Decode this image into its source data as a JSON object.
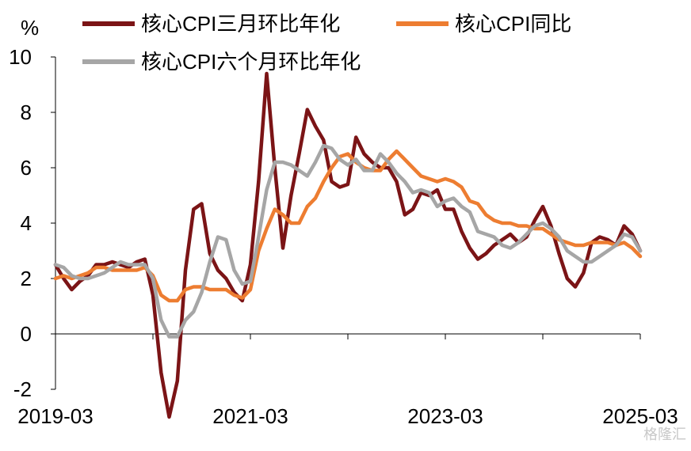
{
  "chart_data": {
    "type": "line",
    "unit_label": "%",
    "ylim": [
      -2,
      10
    ],
    "y_ticks": [
      -2,
      0,
      2,
      4,
      6,
      8,
      10
    ],
    "x_start": "2019-03",
    "x_end": "2025-03",
    "x_tick_labels": [
      "2019-03",
      "2021-03",
      "2023-03",
      "2025-03"
    ],
    "x_minor_ticks": [
      "2020-03",
      "2021-03",
      "2022-03",
      "2023-03",
      "2024-03",
      "2025-03"
    ],
    "grid": false,
    "legend_placement": "top",
    "series": [
      {
        "name": "核心CPI三月环比年化",
        "color": "#7b1416",
        "x": [
          "2019-03",
          "2019-04",
          "2019-05",
          "2019-06",
          "2019-07",
          "2019-08",
          "2019-09",
          "2019-10",
          "2019-11",
          "2019-12",
          "2020-01",
          "2020-02",
          "2020-03",
          "2020-04",
          "2020-05",
          "2020-06",
          "2020-07",
          "2020-08",
          "2020-09",
          "2020-10",
          "2020-11",
          "2020-12",
          "2021-01",
          "2021-02",
          "2021-03",
          "2021-04",
          "2021-05",
          "2021-06",
          "2021-07",
          "2021-08",
          "2021-09",
          "2021-10",
          "2021-11",
          "2021-12",
          "2022-01",
          "2022-02",
          "2022-03",
          "2022-04",
          "2022-05",
          "2022-06",
          "2022-07",
          "2022-08",
          "2022-09",
          "2022-10",
          "2022-11",
          "2022-12",
          "2023-01",
          "2023-02",
          "2023-03",
          "2023-04",
          "2023-05",
          "2023-06",
          "2023-07",
          "2023-08",
          "2023-09",
          "2023-10",
          "2023-11",
          "2023-12",
          "2024-01",
          "2024-02",
          "2024-03",
          "2024-04",
          "2024-05",
          "2024-06",
          "2024-07",
          "2024-08",
          "2024-09",
          "2024-10",
          "2024-11",
          "2024-12",
          "2025-01",
          "2025-02",
          "2025-03"
        ],
        "values": [
          2.5,
          2.0,
          1.6,
          1.9,
          2.1,
          2.5,
          2.5,
          2.6,
          2.5,
          2.4,
          2.6,
          2.7,
          1.4,
          -1.4,
          -3.0,
          -1.7,
          2.3,
          4.5,
          4.7,
          2.9,
          2.3,
          2.0,
          1.5,
          1.2,
          2.5,
          5.5,
          9.4,
          6.0,
          3.1,
          5.0,
          6.5,
          8.1,
          7.5,
          7.0,
          5.5,
          5.3,
          5.4,
          7.1,
          6.5,
          6.2,
          6.0,
          6.0,
          5.5,
          4.3,
          4.5,
          5.1,
          5.0,
          5.2,
          4.5,
          4.5,
          3.7,
          3.1,
          2.7,
          2.9,
          3.2,
          3.4,
          3.6,
          3.3,
          3.5,
          4.1,
          4.6,
          3.9,
          2.9,
          2.0,
          1.7,
          2.2,
          3.3,
          3.5,
          3.4,
          3.2,
          3.9,
          3.6,
          3.0
        ]
      },
      {
        "name": "核心CPI同比",
        "color": "#ed7d31",
        "x": [
          "2019-03",
          "2019-04",
          "2019-05",
          "2019-06",
          "2019-07",
          "2019-08",
          "2019-09",
          "2019-10",
          "2019-11",
          "2019-12",
          "2020-01",
          "2020-02",
          "2020-03",
          "2020-04",
          "2020-05",
          "2020-06",
          "2020-07",
          "2020-08",
          "2020-09",
          "2020-10",
          "2020-11",
          "2020-12",
          "2021-01",
          "2021-02",
          "2021-03",
          "2021-04",
          "2021-05",
          "2021-06",
          "2021-07",
          "2021-08",
          "2021-09",
          "2021-10",
          "2021-11",
          "2021-12",
          "2022-01",
          "2022-02",
          "2022-03",
          "2022-04",
          "2022-05",
          "2022-06",
          "2022-07",
          "2022-08",
          "2022-09",
          "2022-10",
          "2022-11",
          "2022-12",
          "2023-01",
          "2023-02",
          "2023-03",
          "2023-04",
          "2023-05",
          "2023-06",
          "2023-07",
          "2023-08",
          "2023-09",
          "2023-10",
          "2023-11",
          "2023-12",
          "2024-01",
          "2024-02",
          "2024-03",
          "2024-04",
          "2024-05",
          "2024-06",
          "2024-07",
          "2024-08",
          "2024-09",
          "2024-10",
          "2024-11",
          "2024-12",
          "2025-01",
          "2025-02",
          "2025-03"
        ],
        "values": [
          2.0,
          2.1,
          2.0,
          2.1,
          2.2,
          2.4,
          2.4,
          2.3,
          2.3,
          2.3,
          2.3,
          2.4,
          2.1,
          1.4,
          1.2,
          1.2,
          1.6,
          1.7,
          1.7,
          1.6,
          1.6,
          1.6,
          1.4,
          1.3,
          1.6,
          3.0,
          3.8,
          4.5,
          4.3,
          4.0,
          4.0,
          4.6,
          4.9,
          5.5,
          6.0,
          6.4,
          6.5,
          6.2,
          6.0,
          5.9,
          5.9,
          6.3,
          6.6,
          6.3,
          6.0,
          5.7,
          5.6,
          5.5,
          5.6,
          5.5,
          5.3,
          4.8,
          4.7,
          4.3,
          4.1,
          4.0,
          4.0,
          3.9,
          3.9,
          3.8,
          3.8,
          3.6,
          3.4,
          3.3,
          3.2,
          3.2,
          3.3,
          3.3,
          3.3,
          3.2,
          3.3,
          3.1,
          2.8
        ]
      },
      {
        "name": "核心CPI六个月环比年化",
        "color": "#a6a6a6",
        "x": [
          "2019-03",
          "2019-04",
          "2019-05",
          "2019-06",
          "2019-07",
          "2019-08",
          "2019-09",
          "2019-10",
          "2019-11",
          "2019-12",
          "2020-01",
          "2020-02",
          "2020-03",
          "2020-04",
          "2020-05",
          "2020-06",
          "2020-07",
          "2020-08",
          "2020-09",
          "2020-10",
          "2020-11",
          "2020-12",
          "2021-01",
          "2021-02",
          "2021-03",
          "2021-04",
          "2021-05",
          "2021-06",
          "2021-07",
          "2021-08",
          "2021-09",
          "2021-10",
          "2021-11",
          "2021-12",
          "2022-01",
          "2022-02",
          "2022-03",
          "2022-04",
          "2022-05",
          "2022-06",
          "2022-07",
          "2022-08",
          "2022-09",
          "2022-10",
          "2022-11",
          "2022-12",
          "2023-01",
          "2023-02",
          "2023-03",
          "2023-04",
          "2023-05",
          "2023-06",
          "2023-07",
          "2023-08",
          "2023-09",
          "2023-10",
          "2023-11",
          "2023-12",
          "2024-01",
          "2024-02",
          "2024-03",
          "2024-04",
          "2024-05",
          "2024-06",
          "2024-07",
          "2024-08",
          "2024-09",
          "2024-10",
          "2024-11",
          "2024-12",
          "2025-01",
          "2025-02",
          "2025-03"
        ],
        "values": [
          2.5,
          2.4,
          2.1,
          2.0,
          2.0,
          2.1,
          2.2,
          2.4,
          2.6,
          2.5,
          2.5,
          2.5,
          2.0,
          0.5,
          -0.1,
          -0.1,
          0.5,
          0.8,
          1.5,
          2.6,
          3.5,
          3.4,
          2.3,
          1.8,
          1.9,
          3.5,
          5.2,
          6.2,
          6.2,
          6.1,
          5.9,
          5.7,
          6.2,
          6.8,
          6.7,
          6.3,
          6.1,
          6.3,
          5.9,
          5.9,
          6.5,
          6.2,
          5.8,
          5.5,
          5.1,
          5.2,
          5.1,
          4.6,
          4.8,
          4.9,
          4.6,
          4.4,
          3.7,
          3.6,
          3.5,
          3.2,
          3.1,
          3.3,
          3.6,
          3.9,
          4.0,
          3.8,
          3.5,
          3.0,
          2.8,
          2.6,
          2.6,
          2.8,
          3.0,
          3.2,
          3.6,
          3.5,
          3.0
        ]
      }
    ]
  },
  "watermark": "格隆汇"
}
